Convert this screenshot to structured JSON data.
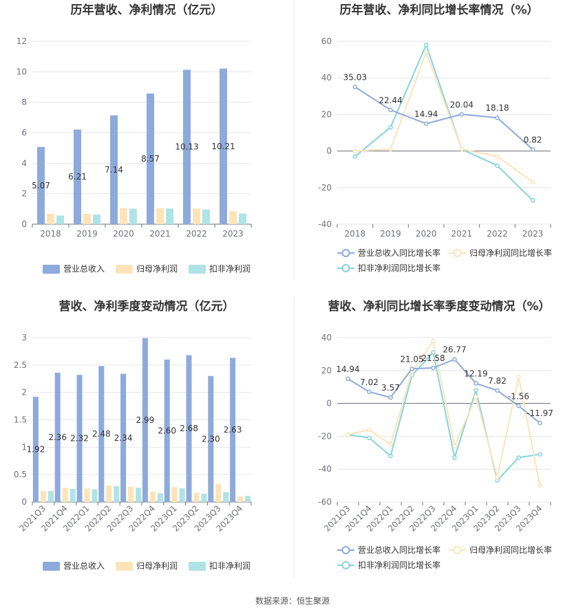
{
  "source_label": "数据来源：恒生聚源",
  "colors": {
    "revenue": "#8eaadb",
    "parent_profit": "#fde4b8",
    "deducted_profit": "#b0e3e6",
    "revenue_line": "#8eaadb",
    "parent_line": "#fde4b8",
    "deducted_line": "#84d4dc",
    "grid": "#e6e6e6",
    "axis": "#6e7079",
    "divider": "#e8e8e8"
  },
  "chart_data": [
    {
      "type": "bar",
      "title": "历年营收、净利情况（亿元）",
      "categories": [
        "2018",
        "2019",
        "2020",
        "2021",
        "2022",
        "2023"
      ],
      "ylim": [
        0,
        12
      ],
      "yticks": [
        0,
        2,
        4,
        6,
        8,
        10,
        12
      ],
      "yticks_text": [
        "0",
        "2",
        "4",
        "6",
        "8",
        "10",
        "12"
      ],
      "series": [
        {
          "name": "营业总收入",
          "values": [
            5.07,
            6.21,
            7.14,
            8.57,
            10.13,
            10.21
          ],
          "labels": [
            "5.07",
            "6.21",
            "7.14",
            "8.57",
            "10.13",
            "10.21"
          ]
        },
        {
          "name": "归母净利润",
          "values": [
            0.68,
            0.68,
            1.05,
            1.05,
            1.03,
            0.85
          ]
        },
        {
          "name": "扣非净利润",
          "values": [
            0.57,
            0.63,
            1.02,
            1.03,
            0.96,
            0.7
          ]
        }
      ],
      "legend_position": "bottom",
      "grid": true
    },
    {
      "type": "line",
      "title": "历年营收、净利同比增长率情况（%）",
      "categories": [
        "2018",
        "2019",
        "2020",
        "2021",
        "2022",
        "2023"
      ],
      "ylim": [
        -40,
        60
      ],
      "yticks": [
        -40,
        -20,
        0,
        20,
        40,
        60
      ],
      "yticks_text": [
        "-40",
        "-20",
        "0",
        "20",
        "40",
        "60"
      ],
      "series": [
        {
          "name": "营业总收入同比增长率",
          "values": [
            35.03,
            22.44,
            14.94,
            20.04,
            18.18,
            0.82
          ],
          "labels": [
            "35.03",
            "22.44",
            "14.94",
            "20.04",
            "18.18",
            "0.82"
          ]
        },
        {
          "name": "归母净利润同比增长率",
          "values": [
            0,
            1,
            54,
            1,
            -3,
            -17
          ]
        },
        {
          "name": "扣非净利润同比增长率",
          "values": [
            -3,
            13,
            58,
            1,
            -8,
            -27
          ]
        }
      ],
      "legend_position": "bottom",
      "grid": true
    },
    {
      "type": "bar",
      "title": "营收、净利季度变动情况（亿元）",
      "categories": [
        "2021Q3",
        "2021Q4",
        "2022Q1",
        "2022Q2",
        "2022Q3",
        "2022Q4",
        "2023Q1",
        "2023Q2",
        "2023Q3",
        "2023Q4"
      ],
      "ylim": [
        0,
        3
      ],
      "yticks": [
        0,
        0.5,
        1,
        1.5,
        2,
        2.5,
        3
      ],
      "yticks_text": [
        "0",
        "0.5",
        "1",
        "1.5",
        "2",
        "2.5",
        "3"
      ],
      "series": [
        {
          "name": "营业总收入",
          "values": [
            1.92,
            2.36,
            2.32,
            2.48,
            2.34,
            2.99,
            2.6,
            2.68,
            2.3,
            2.63
          ],
          "labels": [
            "1.92",
            "2.36",
            "2.32",
            "2.48",
            "2.34",
            "2.99",
            "2.60",
            "2.68",
            "2.30",
            "2.63"
          ]
        },
        {
          "name": "归母净利润",
          "values": [
            0.2,
            0.26,
            0.25,
            0.3,
            0.28,
            0.19,
            0.27,
            0.17,
            0.33,
            0.1
          ]
        },
        {
          "name": "扣非净利润",
          "values": [
            0.2,
            0.24,
            0.23,
            0.29,
            0.26,
            0.16,
            0.25,
            0.15,
            0.18,
            0.11
          ]
        }
      ],
      "legend_position": "bottom",
      "grid": true
    },
    {
      "type": "line",
      "title": "营收、净利同比增长率季度变动情况（%）",
      "categories": [
        "2021Q3",
        "2021Q4",
        "2022Q1",
        "2022Q2",
        "2022Q3",
        "2022Q4",
        "2023Q1",
        "2023Q2",
        "2023Q3",
        "2023Q4"
      ],
      "ylim": [
        -60,
        40
      ],
      "yticks": [
        -60,
        -40,
        -20,
        0,
        20,
        40
      ],
      "yticks_text": [
        "-60",
        "-40",
        "-20",
        "0",
        "20",
        "40"
      ],
      "series": [
        {
          "name": "营业总收入同比增长率",
          "values": [
            14.94,
            7.02,
            3.57,
            21.05,
            21.58,
            26.77,
            12.19,
            7.82,
            -1.56,
            -11.97
          ],
          "labels": [
            "14.94",
            "7.02",
            "3.57",
            "21.05",
            "21.58",
            "26.77",
            "12.19",
            "7.82",
            "-1.56",
            "-11.97"
          ]
        },
        {
          "name": "归母净利润同比增长率",
          "values": [
            -19,
            -16,
            -25,
            19,
            38,
            -26,
            4,
            -45,
            16,
            -50
          ]
        },
        {
          "name": "扣非净利润同比增长率",
          "values": [
            -19,
            -21,
            -32,
            17,
            31,
            -33,
            8,
            -47,
            -33,
            -31
          ]
        }
      ],
      "legend_position": "bottom",
      "grid": true
    }
  ]
}
